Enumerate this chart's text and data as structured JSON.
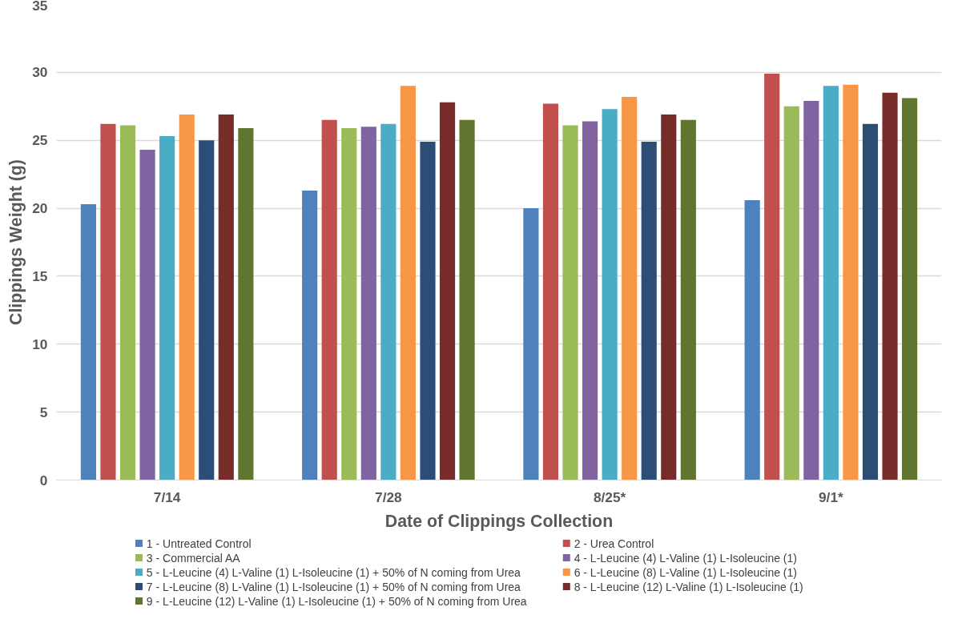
{
  "chart_data": {
    "type": "bar",
    "xlabel": "Date of Clippings Collection",
    "ylabel": "Clippings Weight (g)",
    "categories": [
      "7/14",
      "7/28",
      "8/25*",
      "9/1*"
    ],
    "ylim": [
      0,
      35
    ],
    "yticks": [
      0,
      5,
      10,
      15,
      20,
      25,
      30,
      35
    ],
    "grid": "y",
    "legend": "bottom",
    "series": [
      {
        "name": "1 - Untreated Control",
        "color": "#4f81bd",
        "values": [
          20.3,
          21.3,
          20.0,
          20.6
        ]
      },
      {
        "name": "2 - Urea Control",
        "color": "#c0504d",
        "values": [
          26.2,
          26.5,
          27.7,
          29.9
        ]
      },
      {
        "name": "3 - Commercial AA",
        "color": "#9bbb59",
        "values": [
          26.1,
          25.9,
          26.1,
          27.5
        ]
      },
      {
        "name": "4 - L-Leucine (4) L-Valine (1) L-Isoleucine (1)",
        "color": "#8064a2",
        "values": [
          24.3,
          26.0,
          26.4,
          27.9
        ]
      },
      {
        "name": "5 - L-Leucine (4) L-Valine (1) L-Isoleucine (1) + 50% of N coming from Urea",
        "color": "#4bacc6",
        "values": [
          25.3,
          26.2,
          27.3,
          29.0
        ]
      },
      {
        "name": "6 - L-Leucine (8) L-Valine (1) L-Isoleucine (1)",
        "color": "#f79646",
        "values": [
          26.9,
          29.0,
          28.2,
          29.1
        ]
      },
      {
        "name": "7 - L-Leucine (8) L-Valine (1) L-Isoleucine (1) + 50% of N coming from Urea",
        "color": "#2c4d75",
        "values": [
          25.0,
          24.9,
          24.9,
          26.2
        ]
      },
      {
        "name": "8 - L-Leucine (12) L-Valine (1) L-Isoleucine (1)",
        "color": "#772c2a",
        "values": [
          26.9,
          27.8,
          26.9,
          28.5
        ]
      },
      {
        "name": "9 - L-Leucine (12) L-Valine (1)  L-Isoleucine (1) + 50% of N coming from Urea",
        "color": "#5f7530",
        "values": [
          25.9,
          26.5,
          26.5,
          28.1
        ]
      }
    ]
  }
}
